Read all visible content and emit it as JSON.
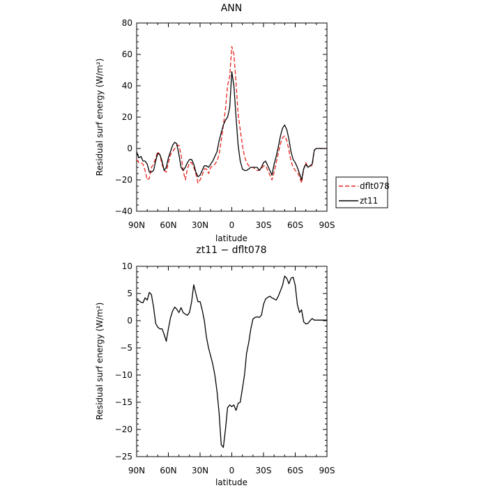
{
  "chart_data": [
    {
      "type": "line",
      "title": "ANN",
      "xlabel": "latitude",
      "ylabel": "Residual surf energy (W/m²)",
      "xlim": [
        90,
        -90
      ],
      "ylim": [
        -40,
        80
      ],
      "xticks": [
        90,
        60,
        30,
        0,
        -30,
        -60,
        -90
      ],
      "xtick_labels": [
        "90N",
        "60N",
        "30N",
        "0",
        "30S",
        "60S",
        "90S"
      ],
      "yticks": [
        -40,
        -20,
        0,
        20,
        40,
        60,
        80
      ],
      "ytick_labels": [
        "−40",
        "−20",
        "0",
        "20",
        "40",
        "60",
        "80"
      ],
      "legend_position": "outside-right",
      "series": [
        {
          "name": "dflt078",
          "color": "#e8201a",
          "dash": "dashed",
          "x": [
            90,
            88,
            86,
            84,
            82,
            80,
            78,
            76,
            74,
            72,
            70,
            68,
            66,
            64,
            62,
            60,
            58,
            56,
            54,
            52,
            50,
            48,
            46,
            44,
            42,
            40,
            38,
            36,
            34,
            32,
            30,
            28,
            26,
            24,
            22,
            20,
            18,
            16,
            14,
            12,
            10,
            8,
            6,
            4,
            2,
            0,
            -2,
            -4,
            -6,
            -8,
            -10,
            -12,
            -14,
            -16,
            -18,
            -20,
            -22,
            -24,
            -26,
            -28,
            -30,
            -32,
            -34,
            -36,
            -38,
            -40,
            -42,
            -44,
            -46,
            -48,
            -50,
            -52,
            -54,
            -56,
            -58,
            -60,
            -62,
            -64,
            -66,
            -68,
            -70,
            -72,
            -74,
            -76,
            -78,
            -80,
            -82,
            -84,
            -86,
            -88,
            -90
          ],
          "y": [
            -7,
            -9,
            -9,
            -10,
            -14,
            -20,
            -19,
            -12,
            -10,
            -6,
            -2,
            -4,
            -10,
            -14,
            -15,
            -9,
            -4,
            -2,
            0,
            2,
            2,
            -4,
            -14,
            -20,
            -13,
            -9,
            -9,
            -12,
            -16,
            -22,
            -20,
            -17,
            -13,
            -13,
            -16,
            -12,
            -11,
            -10,
            -8,
            -4,
            5,
            15,
            25,
            40,
            46,
            65,
            60,
            42,
            22,
            12,
            2,
            -5,
            -9,
            -11,
            -12,
            -12,
            -13,
            -14,
            -14,
            -13,
            -11,
            -11,
            -14,
            -17,
            -20,
            -15,
            -9,
            -3,
            3,
            7,
            8,
            5,
            -1,
            -8,
            -12,
            -14,
            -15,
            -18,
            -22,
            -13,
            -9,
            -12,
            -11,
            -11,
            -1,
            0,
            0,
            0,
            0,
            0,
            0
          ]
        },
        {
          "name": "zt11",
          "color": "#000000",
          "dash": "solid",
          "x": [
            90,
            88,
            86,
            84,
            82,
            80,
            78,
            76,
            74,
            72,
            70,
            68,
            66,
            64,
            62,
            60,
            58,
            56,
            54,
            52,
            50,
            48,
            46,
            44,
            42,
            40,
            38,
            36,
            34,
            32,
            30,
            28,
            26,
            24,
            22,
            20,
            18,
            16,
            14,
            12,
            10,
            8,
            6,
            4,
            2,
            0,
            -2,
            -4,
            -6,
            -8,
            -10,
            -12,
            -14,
            -16,
            -18,
            -20,
            -22,
            -24,
            -26,
            -28,
            -30,
            -32,
            -34,
            -36,
            -38,
            -40,
            -42,
            -44,
            -46,
            -48,
            -50,
            -52,
            -54,
            -56,
            -58,
            -60,
            -62,
            -64,
            -66,
            -68,
            -70,
            -72,
            -74,
            -76,
            -78,
            -80,
            -82,
            -84,
            -86,
            -88,
            -90
          ],
          "y": [
            -2,
            -6,
            -5,
            -8,
            -8,
            -10,
            -15,
            -15,
            -14,
            -8,
            -3,
            -4,
            -8,
            -14,
            -12,
            -6,
            -2,
            2,
            4,
            3,
            -4,
            -12,
            -14,
            -12,
            -9,
            -7,
            -7,
            -10,
            -15,
            -18,
            -17,
            -14,
            -11,
            -11,
            -12,
            -10,
            -8,
            -5,
            -2,
            5,
            10,
            15,
            18,
            20,
            26,
            49,
            40,
            20,
            2,
            -8,
            -13,
            -14,
            -14,
            -13,
            -12,
            -12,
            -12,
            -12,
            -14,
            -12,
            -9,
            -8,
            -11,
            -14,
            -17,
            -10,
            -5,
            1,
            8,
            13,
            15,
            12,
            6,
            -2,
            -7,
            -9,
            -12,
            -16,
            -20,
            -13,
            -10,
            -12,
            -11,
            -10,
            -1,
            0,
            0,
            0,
            0,
            0,
            0
          ]
        }
      ]
    },
    {
      "type": "line",
      "title": "zt11 − dflt078",
      "xlabel": "latitude",
      "ylabel": "Residual surf energy (W/m²)",
      "xlim": [
        90,
        -90
      ],
      "ylim": [
        -25,
        10
      ],
      "xticks": [
        90,
        60,
        30,
        0,
        -30,
        -60,
        -90
      ],
      "xtick_labels": [
        "90N",
        "60N",
        "30N",
        "0",
        "30S",
        "60S",
        "90S"
      ],
      "yticks": [
        -25,
        -20,
        -15,
        -10,
        -5,
        0,
        5,
        10
      ],
      "ytick_labels": [
        "−25",
        "−20",
        "−15",
        "−10",
        "−5",
        "0",
        "5",
        "10"
      ],
      "series": [
        {
          "color": "#000000",
          "dash": "solid",
          "x": [
            90,
            88,
            86,
            84,
            82,
            80,
            78,
            76,
            74,
            72,
            70,
            68,
            66,
            64,
            62,
            60,
            58,
            56,
            54,
            52,
            50,
            48,
            46,
            44,
            42,
            40,
            38,
            36,
            34,
            32,
            30,
            28,
            26,
            24,
            22,
            20,
            18,
            16,
            14,
            12,
            10,
            8,
            6,
            4,
            2,
            0,
            -2,
            -4,
            -6,
            -8,
            -10,
            -12,
            -14,
            -16,
            -18,
            -20,
            -22,
            -24,
            -26,
            -28,
            -30,
            -32,
            -34,
            -36,
            -38,
            -40,
            -42,
            -44,
            -46,
            -48,
            -50,
            -52,
            -54,
            -56,
            -58,
            -60,
            -62,
            -64,
            -66,
            -68,
            -70,
            -72,
            -74,
            -76,
            -78,
            -80,
            -82,
            -84,
            -86,
            -88,
            -90
          ],
          "y": [
            3.8,
            3.7,
            3.4,
            3.3,
            4.2,
            3.8,
            5.2,
            4.8,
            2.5,
            -0.5,
            -1.2,
            -1.5,
            -1.5,
            -2.5,
            -3.8,
            -1.5,
            0.5,
            1.8,
            2.5,
            2.1,
            1.5,
            2.4,
            1.5,
            1.2,
            1.0,
            1.5,
            3.5,
            6.6,
            5.0,
            3.5,
            3.5,
            2.0,
            0.0,
            -3.0,
            -5.0,
            -6.5,
            -8.0,
            -10.0,
            -13.0,
            -17.0,
            -22.8,
            -23.3,
            -20.0,
            -16.0,
            -15.5,
            -15.8,
            -15.5,
            -16.5,
            -15.2,
            -15.0,
            -12.5,
            -10.0,
            -6.0,
            -4.0,
            -1.5,
            0.3,
            0.6,
            0.7,
            0.6,
            1.0,
            3.0,
            4.0,
            4.3,
            4.5,
            4.2,
            4.0,
            3.8,
            4.5,
            5.5,
            6.5,
            8.2,
            7.8,
            6.8,
            7.8,
            8.0,
            6.5,
            3.0,
            1.5,
            2.0,
            -0.2,
            -0.6,
            -0.5,
            0.0,
            0.4,
            0.1,
            0.1,
            0.1,
            0.1,
            0.1,
            0.1,
            0.1
          ]
        }
      ]
    }
  ]
}
